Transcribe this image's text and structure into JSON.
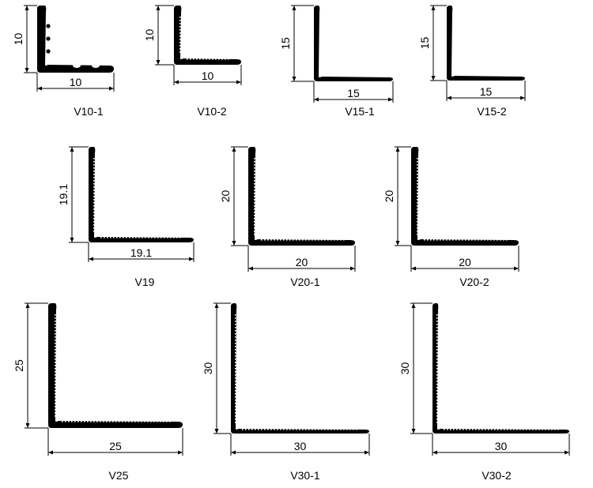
{
  "sheet": {
    "profiles": [
      {
        "code": "V10-1",
        "leg_height": "10",
        "leg_width": "10",
        "ridges": "rounded"
      },
      {
        "code": "V10-2",
        "leg_height": "10",
        "leg_width": "10",
        "ridges": "teeth"
      },
      {
        "code": "V15-1",
        "leg_height": "15",
        "leg_width": "15",
        "ridges": "none"
      },
      {
        "code": "V15-2",
        "leg_height": "15",
        "leg_width": "15",
        "ridges": "none"
      },
      {
        "code": "V19",
        "leg_height": "19.1",
        "leg_width": "19.1",
        "ridges": "teeth"
      },
      {
        "code": "V20-1",
        "leg_height": "20",
        "leg_width": "20",
        "ridges": "teeth"
      },
      {
        "code": "V20-2",
        "leg_height": "20",
        "leg_width": "20",
        "ridges": "teeth"
      },
      {
        "code": "V25",
        "leg_height": "25",
        "leg_width": "25",
        "ridges": "teeth"
      },
      {
        "code": "V30-1",
        "leg_height": "30",
        "leg_width": "30",
        "ridges": "teeth"
      },
      {
        "code": "V30-2",
        "leg_height": "30",
        "leg_width": "30",
        "ridges": "teeth"
      }
    ]
  },
  "colors": {
    "profile": "#000000",
    "background": "#ffffff"
  }
}
